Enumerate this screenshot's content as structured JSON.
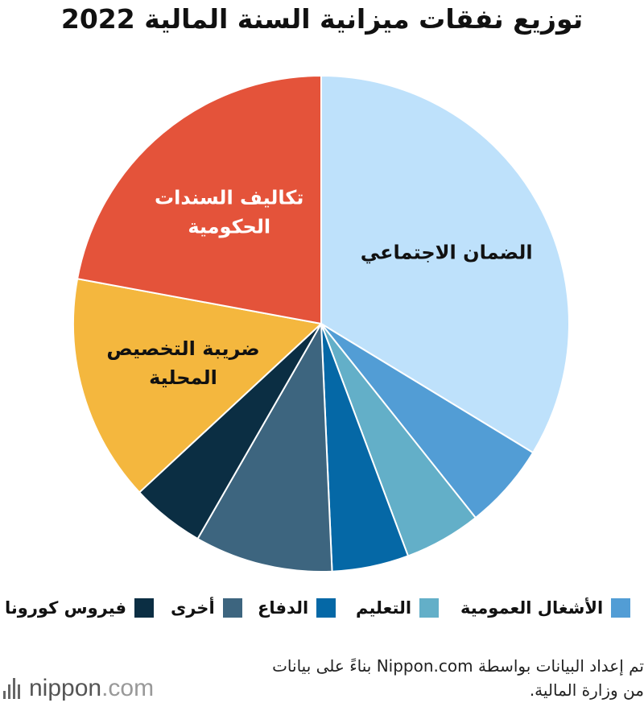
{
  "title": "توزيع نفقات ميزانية السنة المالية 2022",
  "chart_data": {
    "type": "pie",
    "title": "توزيع نفقات ميزانية السنة المالية 2022",
    "start_angle_deg": 0,
    "direction": "clockwise",
    "slices": [
      {
        "label": "الضمان الاجتماعي",
        "value": 33.7,
        "color": "#BEE1FB",
        "text_color": "#111111",
        "on_chart_label": true
      },
      {
        "label": "الأشغال العمومية",
        "value": 5.6,
        "color": "#529DD5",
        "on_chart_label": false
      },
      {
        "label": "التعليم",
        "value": 5.0,
        "color": "#63AFC8",
        "on_chart_label": false
      },
      {
        "label": "الدفاع",
        "value": 5.0,
        "color": "#0568A6",
        "on_chart_label": false
      },
      {
        "label": "أخرى",
        "value": 9.0,
        "color": "#3D657F",
        "on_chart_label": false
      },
      {
        "label": "فيروس كورونا",
        "value": 4.8,
        "color": "#0B2E43",
        "on_chart_label": false
      },
      {
        "label": "ضريبة التخصيص المحلية",
        "label_lines": [
          "ضريبة التخصيص",
          "المحلية"
        ],
        "value": 14.8,
        "color": "#F4B73E",
        "text_color": "#111111",
        "on_chart_label": true
      },
      {
        "label": "تكاليف السندات الحكومية",
        "label_lines": [
          "تكاليف السندات",
          "الحكومية"
        ],
        "value": 22.1,
        "color": "#E4533A",
        "text_color": "#ffffff",
        "on_chart_label": true
      }
    ]
  },
  "legend": [
    {
      "label": "الأشغال العمومية",
      "color": "#529DD5"
    },
    {
      "label": "التعليم",
      "color": "#63AFC8"
    },
    {
      "label": "الدفاع",
      "color": "#0568A6"
    },
    {
      "label": "أخرى",
      "color": "#3D657F"
    },
    {
      "label": "فيروس كورونا",
      "color": "#0B2E43"
    }
  ],
  "footnote": {
    "line1": "تم إعداد البيانات بواسطة Nippon.com بناءً على بيانات",
    "line2": "من وزارة المالية."
  },
  "brand": {
    "name": "nippon",
    "tld": ".com"
  }
}
